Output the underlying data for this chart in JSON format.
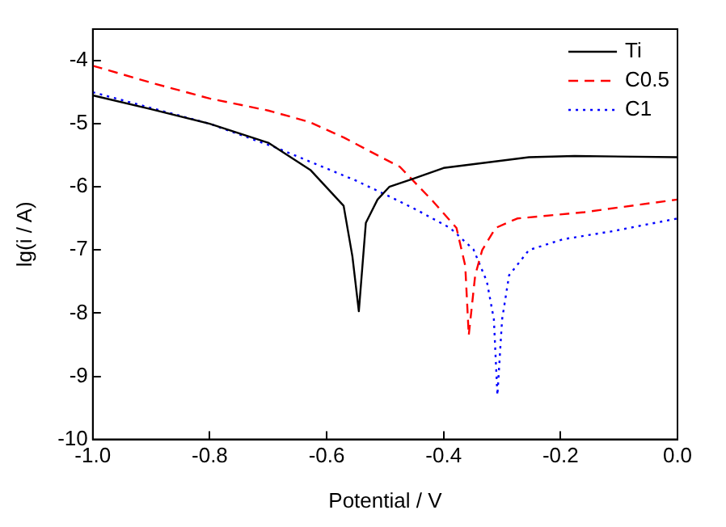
{
  "chart_data": {
    "type": "line",
    "xlabel": "Potential / V",
    "ylabel": "lg(i / A)",
    "xlim": [
      -1.0,
      0.0
    ],
    "ylim": [
      -10,
      -3.5
    ],
    "xticks": [
      {
        "value": -1.0,
        "label": "-1.0"
      },
      {
        "value": -0.8,
        "label": "-0.8"
      },
      {
        "value": -0.6,
        "label": "-0.6"
      },
      {
        "value": -0.4,
        "label": "-0.4"
      },
      {
        "value": -0.2,
        "label": "-0.2"
      },
      {
        "value": 0.0,
        "label": "0.0"
      }
    ],
    "yticks": [
      -10,
      -9,
      -8,
      -7,
      -6,
      -5,
      -4
    ],
    "grid": false,
    "legend": "top right",
    "marker": "none",
    "series": [
      {
        "name": "Ti",
        "color": "#000000",
        "line_style": "solid",
        "x": [
          -1.0,
          -0.9,
          -0.8,
          -0.7,
          -0.628,
          -0.571,
          -0.556,
          -0.545,
          -0.533,
          -0.513,
          -0.493,
          -0.455,
          -0.4,
          -0.254,
          -0.176,
          0.0
        ],
        "values": [
          -4.55,
          -4.77,
          -5.0,
          -5.3,
          -5.73,
          -6.3,
          -7.1,
          -7.97,
          -6.57,
          -6.2,
          -6.0,
          -5.88,
          -5.7,
          -5.53,
          -5.51,
          -5.53
        ]
      },
      {
        "name": "C0.5",
        "color": "#ff0000",
        "line_style": "dashed",
        "x": [
          -1.0,
          -0.9,
          -0.8,
          -0.7,
          -0.63,
          -0.57,
          -0.513,
          -0.475,
          -0.418,
          -0.378,
          -0.363,
          -0.357,
          -0.346,
          -0.334,
          -0.311,
          -0.274,
          -0.159,
          0.0
        ],
        "values": [
          -4.08,
          -4.35,
          -4.6,
          -4.79,
          -4.97,
          -5.22,
          -5.5,
          -5.68,
          -6.23,
          -6.65,
          -7.25,
          -8.35,
          -7.4,
          -7.0,
          -6.65,
          -6.5,
          -6.4,
          -6.2
        ]
      },
      {
        "name": "C1",
        "color": "#0000ff",
        "line_style": "dotted",
        "x": [
          -1.0,
          -0.9,
          -0.8,
          -0.686,
          -0.55,
          -0.484,
          -0.447,
          -0.389,
          -0.349,
          -0.326,
          -0.314,
          -0.308,
          -0.3,
          -0.288,
          -0.254,
          -0.196,
          -0.11,
          0.0
        ],
        "values": [
          -4.5,
          -4.75,
          -5.0,
          -5.38,
          -5.9,
          -6.19,
          -6.36,
          -6.65,
          -6.99,
          -7.5,
          -8.1,
          -9.3,
          -8.1,
          -7.4,
          -7.0,
          -6.83,
          -6.7,
          -6.5
        ]
      }
    ]
  }
}
